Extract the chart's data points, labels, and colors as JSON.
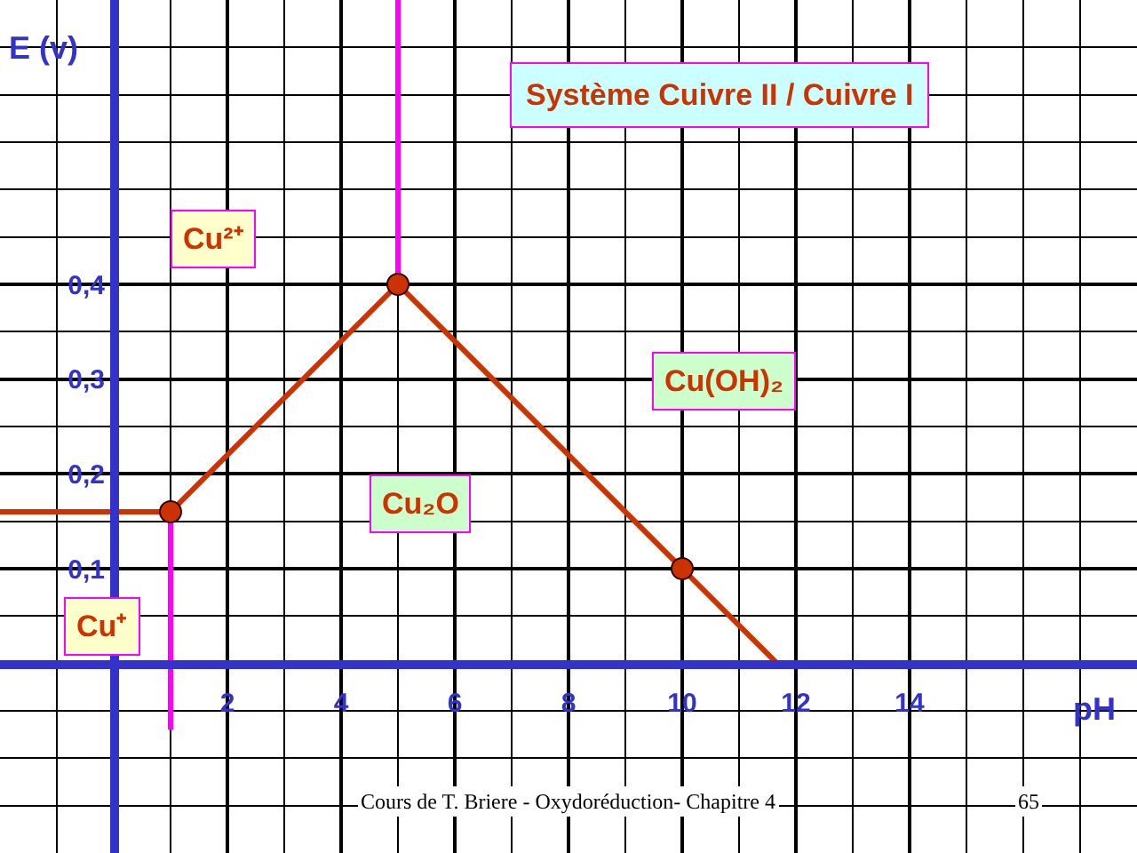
{
  "chart_data": {
    "type": "line",
    "title": "Système Cuivre II / Cuivre I",
    "xlabel": "pH",
    "ylabel": "E (v)",
    "xlim": [
      -2,
      18
    ],
    "ylim": [
      -0.2,
      0.7
    ],
    "xticks": [
      2,
      4,
      6,
      8,
      10,
      12,
      14
    ],
    "yticks": [
      {
        "value": 0.1,
        "label": "0,1"
      },
      {
        "value": 0.2,
        "label": "0,2"
      },
      {
        "value": 0.3,
        "label": "0,3"
      },
      {
        "value": 0.4,
        "label": "0,4"
      }
    ],
    "grid": true,
    "series": [
      {
        "color": "#cc3300",
        "x": [
          -2,
          1,
          5,
          10,
          11.67
        ],
        "values": [
          0.16,
          0.16,
          0.4,
          0.1,
          0
        ]
      },
      {
        "color": "#ff00ff",
        "x": [
          1,
          1
        ],
        "values": [
          0.16,
          -0.07
        ]
      },
      {
        "color": "#ff00ff",
        "x": [
          5,
          5
        ],
        "values": [
          0.4,
          0.7
        ]
      },
      {
        "type": "scatter",
        "color": "#cc3300",
        "marker": "circle",
        "x": [
          1,
          5,
          10
        ],
        "values": [
          0.16,
          0.4,
          0.1
        ]
      }
    ],
    "annotations": [
      "Cu²⁺",
      "Cu⁺",
      "Cu₂O",
      "Cu(OH)₂",
      "Cours de T. Briere - Oxydoréduction- Chapitre 4",
      "65"
    ]
  }
}
